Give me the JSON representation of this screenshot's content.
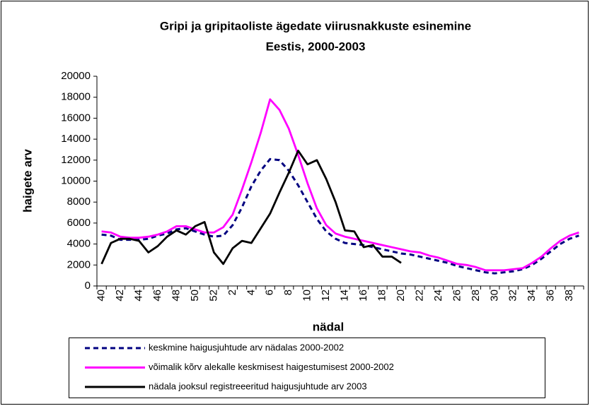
{
  "chart_data": {
    "type": "line",
    "title": [
      "Gripi ja gripitaoliste ägedate viirusnakkuste esinemine",
      "Eestis, 2000-2003"
    ],
    "x_label": "nädal",
    "y_label": "haigete arv",
    "categories": [
      "40",
      null,
      "42",
      null,
      "44",
      null,
      "46",
      null,
      "48",
      null,
      "50",
      null,
      "52",
      null,
      "2",
      null,
      "4",
      null,
      "6",
      null,
      "8",
      null,
      "10",
      null,
      "12",
      null,
      "14",
      null,
      "16",
      null,
      "18",
      null,
      "20",
      null,
      "22",
      null,
      "24",
      null,
      "26",
      null,
      "28",
      null,
      "30",
      null,
      "32",
      null,
      "34",
      null,
      "36",
      null,
      "38",
      null
    ],
    "ylim": [
      0,
      20000
    ],
    "yticks": [
      0,
      2000,
      4000,
      6000,
      8000,
      10000,
      12000,
      14000,
      16000,
      18000,
      20000
    ],
    "grid": false,
    "series": [
      {
        "name": "keskmine haigusjuhtude arv  nädalas 2000-2002",
        "color": "#000080",
        "style": "dashed",
        "values": [
          4900,
          4800,
          4400,
          4400,
          4400,
          4500,
          4800,
          5000,
          5400,
          5500,
          5200,
          4900,
          4700,
          4800,
          5800,
          7500,
          9500,
          11000,
          12100,
          12000,
          11000,
          9600,
          8000,
          6400,
          5200,
          4500,
          4100,
          4000,
          3900,
          3700,
          3500,
          3300,
          3100,
          3000,
          2800,
          2600,
          2400,
          2200,
          1900,
          1700,
          1500,
          1300,
          1200,
          1300,
          1400,
          1600,
          2000,
          2600,
          3300,
          4000,
          4500,
          4800
        ]
      },
      {
        "name": "võimalik kõrv alekalle keskmisest haigestumisest 2000-2002",
        "color": "#ff00ff",
        "style": "solid",
        "values": [
          5200,
          5100,
          4700,
          4600,
          4600,
          4700,
          4900,
          5200,
          5700,
          5700,
          5400,
          5100,
          5100,
          5600,
          6800,
          9200,
          11800,
          14600,
          17800,
          16800,
          15000,
          12500,
          9800,
          7400,
          5800,
          5000,
          4700,
          4500,
          4300,
          4100,
          3900,
          3700,
          3500,
          3300,
          3200,
          2900,
          2700,
          2400,
          2100,
          2000,
          1800,
          1500,
          1500,
          1500,
          1600,
          1700,
          2200,
          2800,
          3600,
          4300,
          4800,
          5100
        ]
      },
      {
        "name": "nädala jooksul registreeeritud haigusjuhtude arv  2003",
        "color": "#000000",
        "style": "solid",
        "values": [
          2100,
          4100,
          4500,
          4500,
          4300,
          3200,
          3800,
          4700,
          5300,
          4900,
          5700,
          6100,
          3200,
          2100,
          3600,
          4300,
          4100,
          5500,
          6900,
          8900,
          10800,
          12900,
          11600,
          12000,
          10200,
          8000,
          5300,
          5200,
          3700,
          3900,
          2800,
          2800,
          2200,
          null,
          null,
          null,
          null,
          null,
          null,
          null,
          null,
          null,
          null,
          null,
          null,
          null,
          null,
          null,
          null,
          null,
          null,
          null
        ]
      }
    ]
  }
}
